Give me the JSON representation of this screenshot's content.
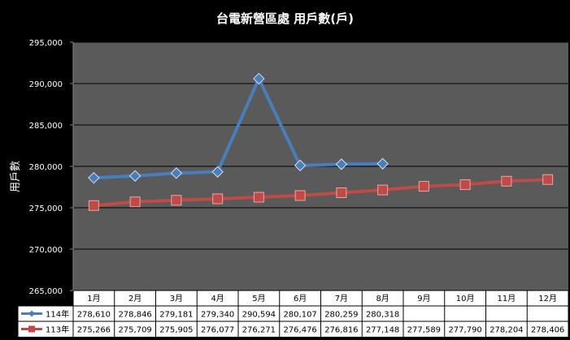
{
  "chart_data": {
    "type": "line",
    "title": "台電新營區處 用戶數(戶)",
    "xlabel": "",
    "ylabel": "用戶數",
    "categories": [
      "1月",
      "2月",
      "3月",
      "4月",
      "5月",
      "6月",
      "7月",
      "8月",
      "9月",
      "10月",
      "11月",
      "12月"
    ],
    "series": [
      {
        "name": "114年",
        "color": "#4a7ebb",
        "marker": "diamond",
        "values": [
          278610,
          278846,
          279181,
          279340,
          290594,
          280107,
          280259,
          280318,
          null,
          null,
          null,
          null
        ],
        "labels": [
          "278,610",
          "278,846",
          "279,181",
          "279,340",
          "290,594",
          "280,107",
          "280,259",
          "280,318",
          "",
          "",
          "",
          ""
        ]
      },
      {
        "name": "113年",
        "color": "#be4b48",
        "marker": "square",
        "values": [
          275266,
          275709,
          275905,
          276077,
          276271,
          276476,
          276816,
          277148,
          277589,
          277790,
          278204,
          278406
        ],
        "labels": [
          "275,266",
          "275,709",
          "275,905",
          "276,077",
          "276,271",
          "276,476",
          "276,816",
          "277,148",
          "277,589",
          "277,790",
          "278,204",
          "278,406"
        ]
      }
    ],
    "ylim": [
      265000,
      295000
    ],
    "yticks": [
      "265,000",
      "270,000",
      "275,000",
      "280,000",
      "285,000",
      "290,000",
      "295,000"
    ],
    "ytick_values": [
      265000,
      270000,
      275000,
      280000,
      285000,
      290000,
      295000
    ],
    "grid": true,
    "data_table": true,
    "colors": {
      "background": "#000000",
      "plot_area": "#5a5a5a",
      "grid": "#000000"
    }
  }
}
